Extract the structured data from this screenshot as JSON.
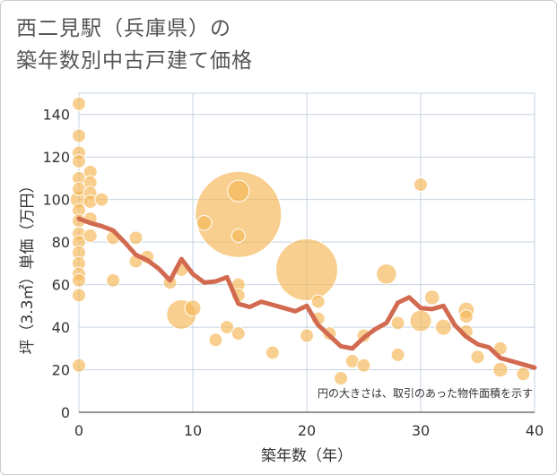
{
  "chart_data": {
    "type": "scatter",
    "title_lines": [
      "西二見駅（兵庫県）の",
      "築年数別中古戸建て価格"
    ],
    "xlabel": "築年数（年）",
    "ylabel": "坪（3.3㎡）単価（万円）",
    "xlim": [
      0,
      40
    ],
    "ylim": [
      0,
      150
    ],
    "x_ticks": [
      0,
      10,
      20,
      30,
      40
    ],
    "y_ticks": [
      0,
      20,
      40,
      60,
      80,
      100,
      120,
      140
    ],
    "grid": true,
    "annotation": "円の大きさは、取引のあった物件面積を示す",
    "colors": {
      "bubble": "#f5b85a",
      "trend": "#d26a50",
      "grid": "#c5d3e0"
    },
    "points": [
      {
        "x": 0,
        "y": 145,
        "s": 1
      },
      {
        "x": 0,
        "y": 130,
        "s": 1
      },
      {
        "x": 0,
        "y": 122,
        "s": 1
      },
      {
        "x": 0,
        "y": 118,
        "s": 1
      },
      {
        "x": 0,
        "y": 110,
        "s": 1
      },
      {
        "x": 0,
        "y": 105,
        "s": 1
      },
      {
        "x": 0,
        "y": 100,
        "s": 1.3
      },
      {
        "x": 0,
        "y": 95,
        "s": 1
      },
      {
        "x": 0,
        "y": 90,
        "s": 1
      },
      {
        "x": 0,
        "y": 84,
        "s": 1
      },
      {
        "x": 0,
        "y": 80,
        "s": 1
      },
      {
        "x": 0,
        "y": 75,
        "s": 1
      },
      {
        "x": 0,
        "y": 70,
        "s": 1
      },
      {
        "x": 0,
        "y": 65,
        "s": 1
      },
      {
        "x": 0,
        "y": 62,
        "s": 1
      },
      {
        "x": 0,
        "y": 55,
        "s": 1
      },
      {
        "x": 0,
        "y": 22,
        "s": 1
      },
      {
        "x": 1,
        "y": 113,
        "s": 1
      },
      {
        "x": 1,
        "y": 108,
        "s": 1
      },
      {
        "x": 1,
        "y": 103,
        "s": 1
      },
      {
        "x": 1,
        "y": 99,
        "s": 1
      },
      {
        "x": 1,
        "y": 91,
        "s": 1
      },
      {
        "x": 1,
        "y": 83,
        "s": 1
      },
      {
        "x": 2,
        "y": 100,
        "s": 1
      },
      {
        "x": 3,
        "y": 82,
        "s": 1
      },
      {
        "x": 3,
        "y": 62,
        "s": 1
      },
      {
        "x": 5,
        "y": 82,
        "s": 1
      },
      {
        "x": 5,
        "y": 71,
        "s": 1
      },
      {
        "x": 6,
        "y": 73,
        "s": 1
      },
      {
        "x": 8,
        "y": 61,
        "s": 1
      },
      {
        "x": 9,
        "y": 67,
        "s": 1
      },
      {
        "x": 9,
        "y": 46,
        "s": 2.2
      },
      {
        "x": 10,
        "y": 49,
        "s": 1.2
      },
      {
        "x": 11,
        "y": 89,
        "s": 1.1
      },
      {
        "x": 12,
        "y": 34,
        "s": 1
      },
      {
        "x": 13,
        "y": 40,
        "s": 1
      },
      {
        "x": 14,
        "y": 93,
        "s": 6.4
      },
      {
        "x": 14,
        "y": 104,
        "s": 1.6
      },
      {
        "x": 14,
        "y": 83,
        "s": 1
      },
      {
        "x": 14,
        "y": 60,
        "s": 1
      },
      {
        "x": 14,
        "y": 55,
        "s": 1
      },
      {
        "x": 14,
        "y": 37,
        "s": 1
      },
      {
        "x": 17,
        "y": 28,
        "s": 1
      },
      {
        "x": 20,
        "y": 67,
        "s": 4.6
      },
      {
        "x": 20,
        "y": 36,
        "s": 1
      },
      {
        "x": 21,
        "y": 52,
        "s": 1
      },
      {
        "x": 21,
        "y": 44,
        "s": 1
      },
      {
        "x": 22,
        "y": 37,
        "s": 1
      },
      {
        "x": 23,
        "y": 16,
        "s": 1
      },
      {
        "x": 24,
        "y": 24,
        "s": 1
      },
      {
        "x": 25,
        "y": 36,
        "s": 1
      },
      {
        "x": 25,
        "y": 22,
        "s": 1
      },
      {
        "x": 27,
        "y": 65,
        "s": 1.5
      },
      {
        "x": 28,
        "y": 42,
        "s": 1
      },
      {
        "x": 28,
        "y": 27,
        "s": 1
      },
      {
        "x": 30,
        "y": 107,
        "s": 1
      },
      {
        "x": 30,
        "y": 43,
        "s": 1.6
      },
      {
        "x": 31,
        "y": 54,
        "s": 1.1
      },
      {
        "x": 32,
        "y": 40,
        "s": 1.2
      },
      {
        "x": 34,
        "y": 48,
        "s": 1.2
      },
      {
        "x": 34,
        "y": 45,
        "s": 1
      },
      {
        "x": 34,
        "y": 38,
        "s": 1
      },
      {
        "x": 35,
        "y": 26,
        "s": 1
      },
      {
        "x": 37,
        "y": 30,
        "s": 1
      },
      {
        "x": 37,
        "y": 20,
        "s": 1.1
      },
      {
        "x": 39,
        "y": 18,
        "s": 1
      }
    ],
    "trend": {
      "x": [
        0,
        1,
        2,
        3,
        4,
        5,
        6,
        7,
        8,
        9,
        10,
        11,
        12,
        13,
        14,
        15,
        16,
        17,
        18,
        19,
        20,
        21,
        22,
        23,
        24,
        25,
        26,
        27,
        28,
        29,
        30,
        31,
        32,
        33,
        34,
        35,
        36,
        37,
        38,
        39,
        40
      ],
      "y": [
        91,
        89,
        87.5,
        85.5,
        80,
        74,
        71.5,
        67.5,
        62,
        72,
        65,
        61,
        61.5,
        63.5,
        51,
        49.5,
        52,
        50.5,
        49,
        47.5,
        50,
        41,
        36,
        31,
        30,
        35,
        39,
        42,
        51.5,
        54,
        49,
        48.5,
        50,
        41,
        35.5,
        32,
        30.5,
        25.5,
        24,
        22.5,
        21
      ]
    }
  }
}
